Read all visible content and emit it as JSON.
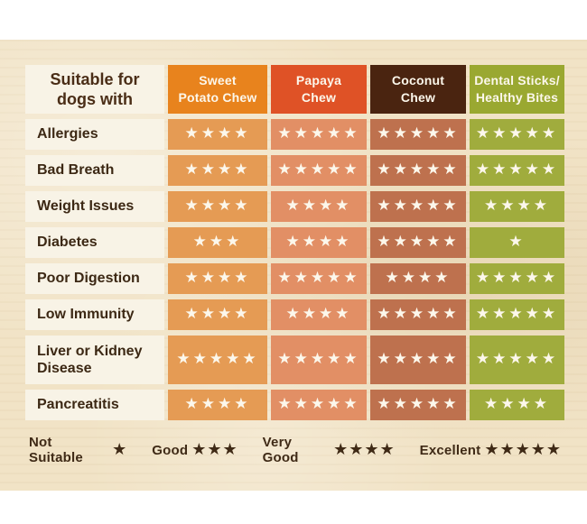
{
  "page": {
    "background_color": "#ffffff",
    "paper_color": "#f1e3c6"
  },
  "table": {
    "corner_header": "Suitable for\ndogs with",
    "columns": [
      {
        "label": "Sweet\nPotato Chew",
        "header_color": "#e8831d",
        "cell_color": "#e59b54"
      },
      {
        "label": "Papaya\nChew",
        "header_color": "#df5226",
        "cell_color": "#e28f65"
      },
      {
        "label": "Coconut\nChew",
        "header_color": "#4a2410",
        "cell_color": "#be714e"
      },
      {
        "label": "Dental Sticks/\nHealthy Bites",
        "header_color": "#9aa831",
        "cell_color": "#a0ac3d"
      }
    ],
    "rows": [
      {
        "label": "Allergies",
        "ratings": [
          4,
          5,
          5,
          5
        ]
      },
      {
        "label": "Bad Breath",
        "ratings": [
          4,
          5,
          5,
          5
        ]
      },
      {
        "label": "Weight Issues",
        "ratings": [
          4,
          4,
          5,
          4
        ]
      },
      {
        "label": "Diabetes",
        "ratings": [
          3,
          4,
          5,
          1
        ]
      },
      {
        "label": "Poor Digestion",
        "ratings": [
          4,
          5,
          4,
          5
        ]
      },
      {
        "label": "Low Immunity",
        "ratings": [
          4,
          4,
          5,
          5
        ]
      },
      {
        "label": "Liver or Kidney Disease",
        "ratings": [
          5,
          5,
          5,
          5
        ]
      },
      {
        "label": "Pancreatitis",
        "ratings": [
          4,
          5,
          5,
          4
        ]
      }
    ]
  },
  "legend": {
    "items": [
      {
        "label": "Not Suitable",
        "stars": 1
      },
      {
        "label": "Good",
        "stars": 3
      },
      {
        "label": "Very Good",
        "stars": 4
      },
      {
        "label": "Excellent",
        "stars": 5
      }
    ],
    "text_color": "#3f2a16"
  },
  "star_glyph": "★",
  "star_color_on_cells": "#fcf7eb"
}
